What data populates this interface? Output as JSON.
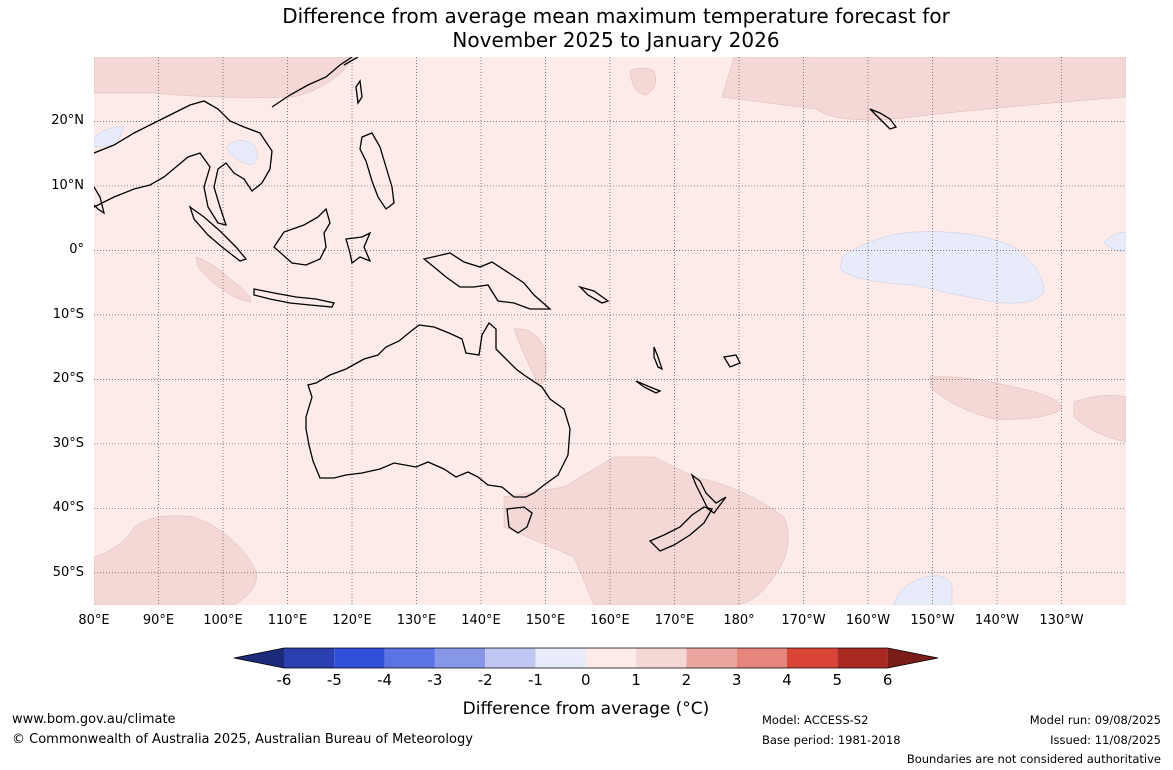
{
  "title": {
    "line1": "Difference from average mean maximum temperature forecast for",
    "line2": "November 2025 to January 2026"
  },
  "map": {
    "lon_range": [
      80,
      240
    ],
    "lat_range": [
      -55,
      30
    ],
    "lat_labels": [
      "20°N",
      "10°N",
      "0°",
      "10°S",
      "20°S",
      "30°S",
      "40°S",
      "50°S"
    ],
    "lat_values": [
      20,
      10,
      0,
      -10,
      -20,
      -30,
      -40,
      -50
    ],
    "lon_labels": [
      "80°E",
      "90°E",
      "100°E",
      "110°E",
      "120°E",
      "130°E",
      "140°E",
      "150°E",
      "160°E",
      "170°E",
      "180°",
      "170°W",
      "160°W",
      "150°W",
      "140°W",
      "130°W"
    ],
    "lon_values": [
      80,
      90,
      100,
      110,
      120,
      130,
      140,
      150,
      160,
      170,
      180,
      190,
      200,
      210,
      220,
      230
    ],
    "gridlines": "dotted",
    "background_color": "#fcebe9",
    "warm_patch_color": "#f4d8d5",
    "cool_patch_color": "#e7ebfa",
    "coast_color": "#000000"
  },
  "colorbar": {
    "ticks": [
      "-6",
      "-5",
      "-4",
      "-3",
      "-2",
      "-1",
      "0",
      "1",
      "2",
      "3",
      "4",
      "5",
      "6"
    ],
    "colors": [
      "#1b2a7a",
      "#2a3fb0",
      "#3050dc",
      "#5a74e6",
      "#8797e8",
      "#c0c7f2",
      "#e8ebfa",
      "#fcebe9",
      "#f4d8d5",
      "#eba6a0",
      "#e5857c",
      "#db4538",
      "#a82a23",
      "#7b1d17"
    ],
    "label": "Difference from average (°C)"
  },
  "footer": {
    "website": "www.bom.gov.au/climate",
    "copyright": "© Commonwealth of Australia 2025, Australian Bureau of Meteorology",
    "model": "Model: ACCESS-S2",
    "base_period": "Base period: 1981-2018",
    "model_run": "Model run: 09/08/2025",
    "issued": "Issued: 11/08/2025",
    "disclaimer": "Boundaries are not considered authoritative"
  }
}
